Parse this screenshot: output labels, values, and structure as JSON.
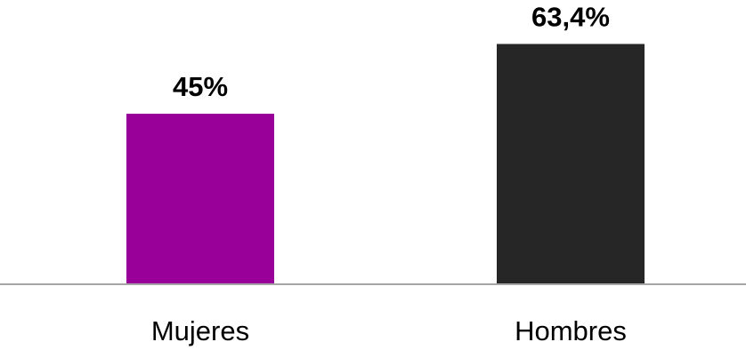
{
  "chart_data": {
    "type": "bar",
    "categories": [
      "Mujeres",
      "Hombres"
    ],
    "values": [
      45,
      63.4
    ],
    "value_labels": [
      "45%",
      "63,4%"
    ],
    "colors": [
      "#990099",
      "#262626"
    ],
    "ylim": [
      0,
      75
    ],
    "title": "",
    "xlabel": "",
    "ylabel": "",
    "grid": false,
    "legend": "none",
    "axis_color": "#a6a6a6"
  }
}
